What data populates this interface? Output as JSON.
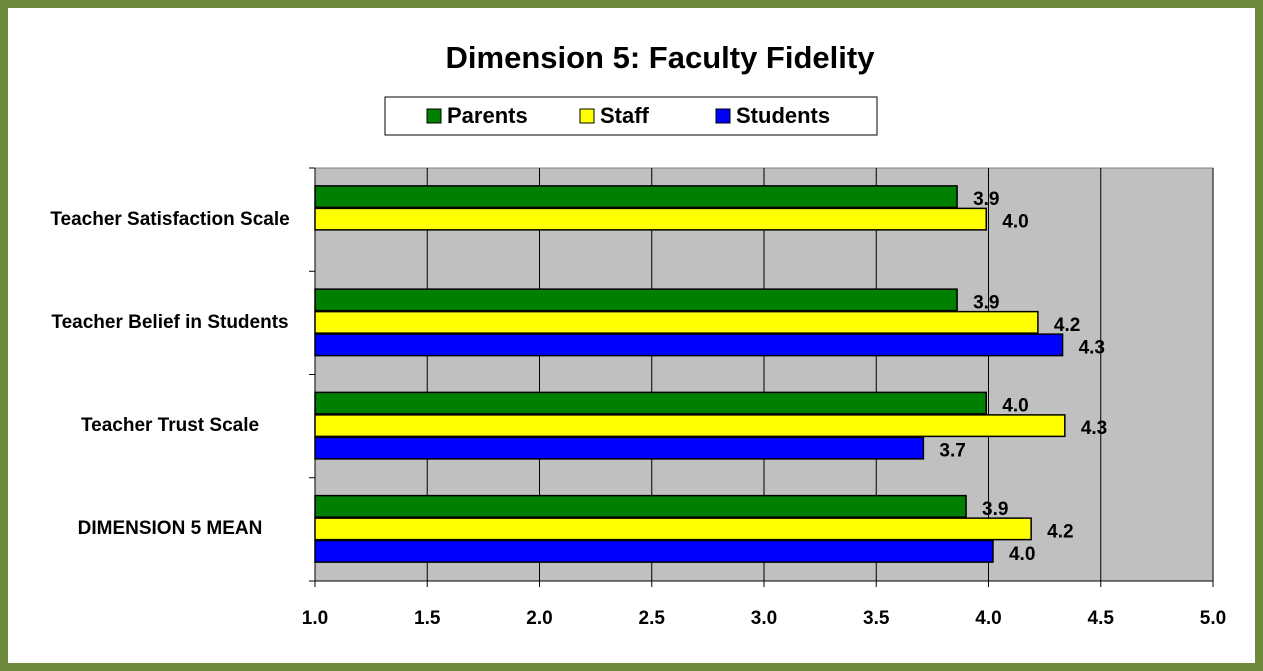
{
  "chart_data": {
    "type": "hbar",
    "title": "Dimension 5: Faculty Fidelity",
    "categories": [
      "Teacher Satisfaction Scale",
      "Teacher Belief in Students",
      "Teacher Trust Scale",
      "DIMENSION 5 MEAN"
    ],
    "series": [
      {
        "name": "Parents",
        "color": "#008000",
        "values": [
          3.86,
          3.86,
          3.99,
          3.9
        ],
        "value_labels": [
          "3.9",
          "3.9",
          "4.0",
          "3.9"
        ]
      },
      {
        "name": "Staff",
        "color": "#ffff00",
        "values": [
          3.99,
          4.22,
          4.34,
          4.19
        ],
        "value_labels": [
          "4.0",
          "4.2",
          "4.3",
          "4.2"
        ]
      },
      {
        "name": "Students",
        "color": "#0000ff",
        "values": [
          null,
          4.33,
          3.71,
          4.02
        ],
        "value_labels": [
          null,
          "4.3",
          "3.7",
          "4.0"
        ]
      }
    ],
    "xlim": [
      1,
      5
    ],
    "xticks": [
      {
        "value": 1,
        "label": "1.0"
      },
      1.5,
      {
        "value": 2,
        "label": "2.0"
      },
      2.5,
      {
        "value": 3,
        "label": "3.0"
      },
      3.5,
      {
        "value": 4,
        "label": "4.0"
      },
      4.5,
      {
        "value": 5,
        "label": "5.0"
      }
    ],
    "grid": true,
    "legend": "top"
  }
}
